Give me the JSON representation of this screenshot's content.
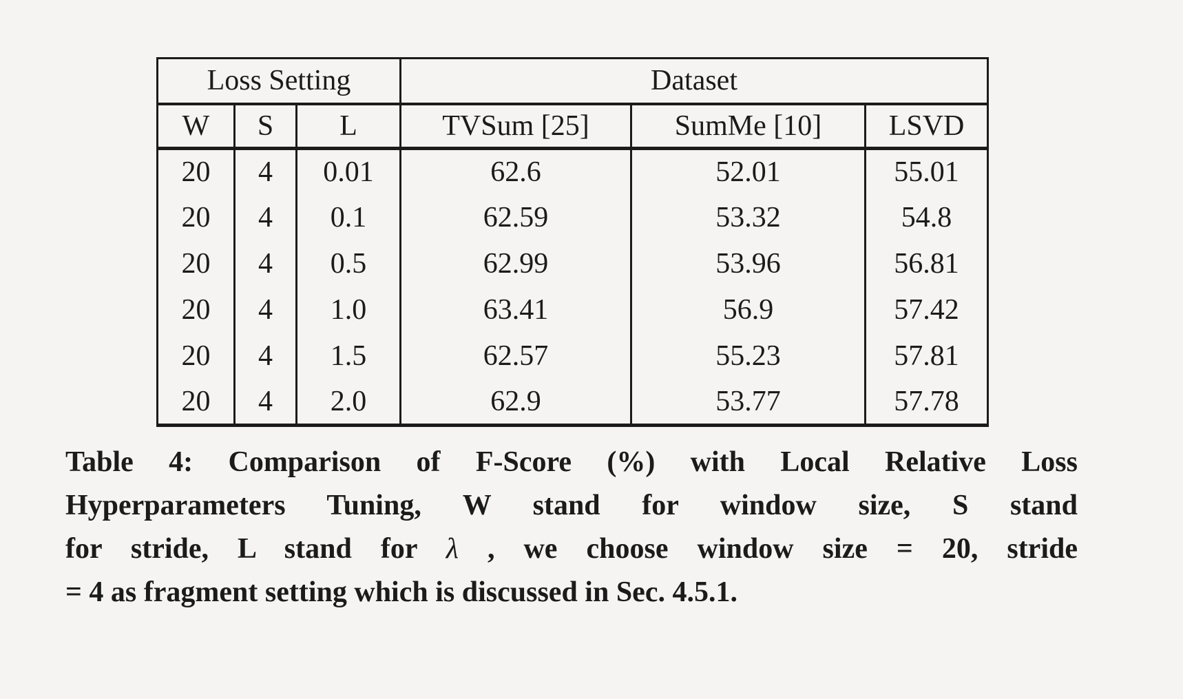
{
  "page": {
    "background_color": "#f5f4f2",
    "text_color": "#1b1b1b"
  },
  "table": {
    "group_headers": [
      {
        "label": "Loss Setting"
      },
      {
        "label": "Dataset"
      }
    ],
    "columns": [
      "W",
      "S",
      "L",
      "TVSum [25]",
      "SumMe [10]",
      "LSVD"
    ],
    "rows": [
      [
        "20",
        "4",
        "0.01",
        "62.6",
        "52.01",
        "55.01"
      ],
      [
        "20",
        "4",
        "0.1",
        "62.59",
        "53.32",
        "54.8"
      ],
      [
        "20",
        "4",
        "0.5",
        "62.99",
        "53.96",
        "56.81"
      ],
      [
        "20",
        "4",
        "1.0",
        "63.41",
        "56.9",
        "57.42"
      ],
      [
        "20",
        "4",
        "1.5",
        "62.57",
        "55.23",
        "57.81"
      ],
      [
        "20",
        "4",
        "2.0",
        "62.9",
        "53.77",
        "57.78"
      ]
    ]
  },
  "caption": {
    "line1": "Table 4: Comparison of F-Score (%) with Local Relative Loss",
    "line2": "Hyperparameters Tuning, W stand for window size, S stand",
    "line3_pre": "for stride, L stand for ",
    "line3_lambda": "λ",
    "line3_post": " , we choose window size = 20, stride",
    "line4": "= 4 as fragment setting which is discussed in Sec. 4.5.1."
  }
}
